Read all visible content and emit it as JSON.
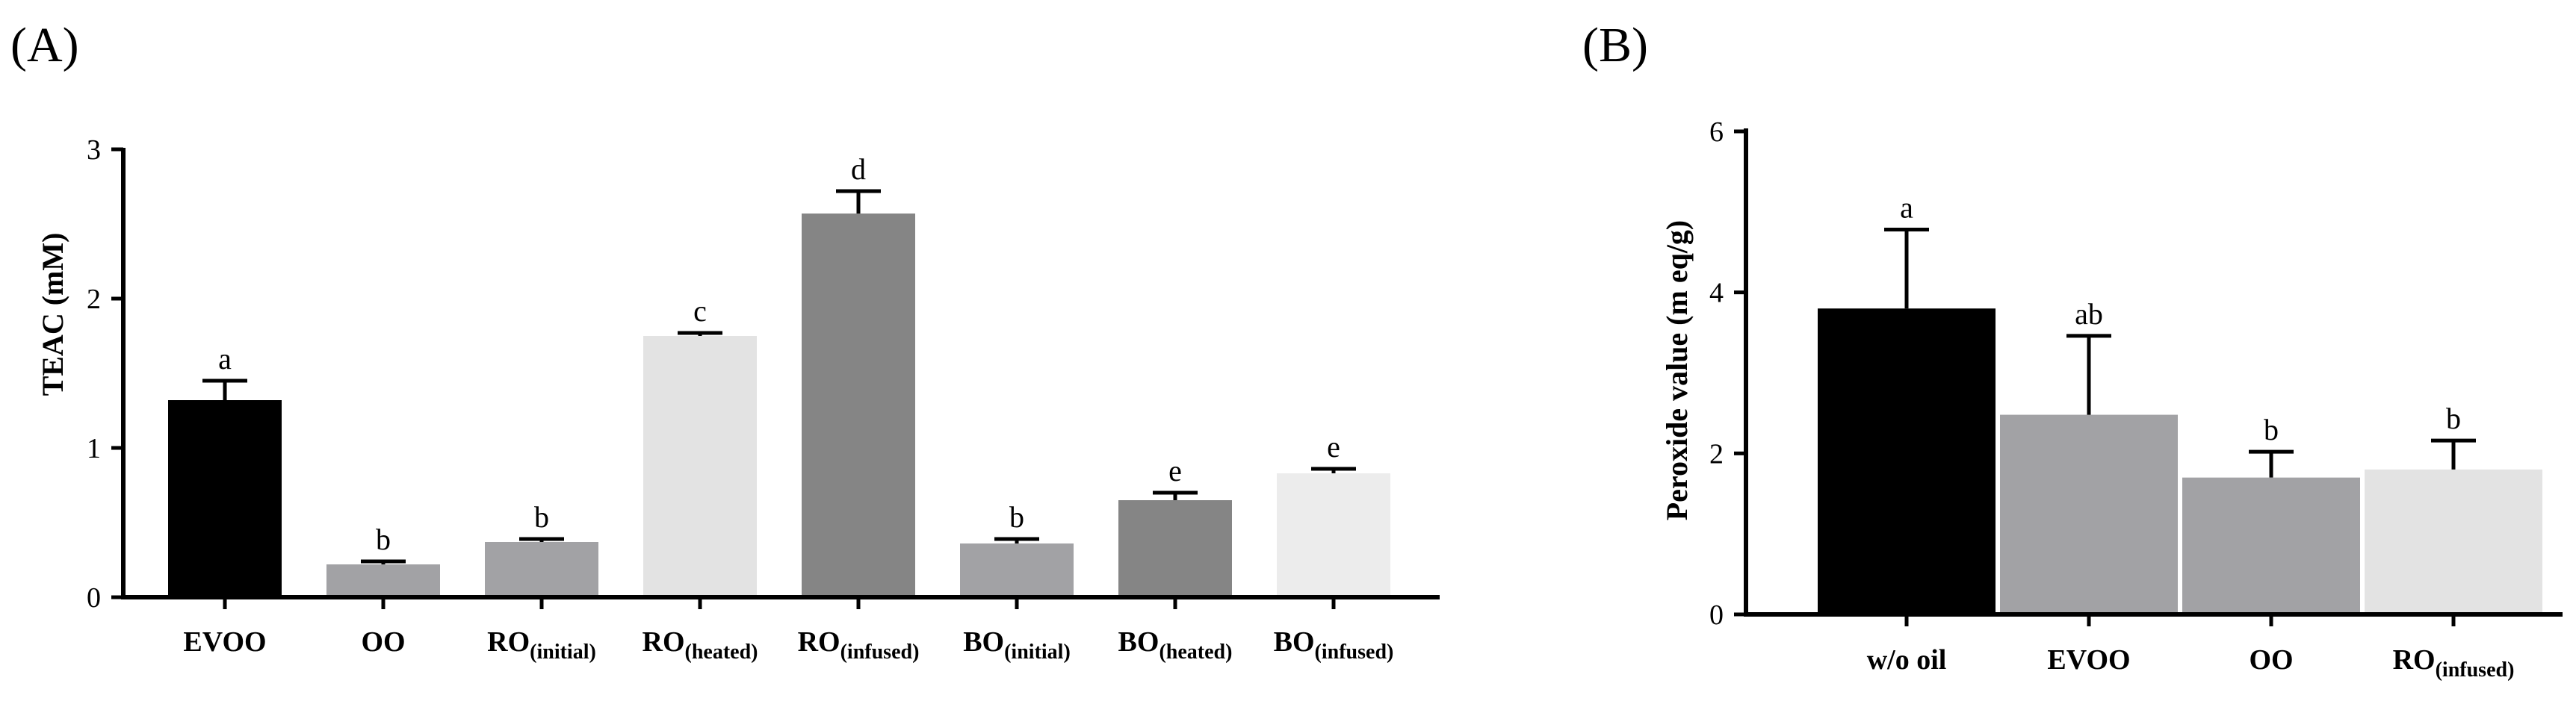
{
  "chart_data": [
    {
      "type": "bar",
      "panel": "(A)",
      "ylabel": "TEAC (mM)",
      "ylim": [
        0,
        3
      ],
      "yticks": [
        "0",
        "1",
        "2",
        "3"
      ],
      "categories": [
        {
          "main": "EVOO",
          "sub": ""
        },
        {
          "main": "OO",
          "sub": ""
        },
        {
          "main": "RO",
          "sub": "(initial)"
        },
        {
          "main": "RO",
          "sub": "(heated)"
        },
        {
          "main": "RO",
          "sub": "(infused)"
        },
        {
          "main": "BO",
          "sub": "(initial)"
        },
        {
          "main": "BO",
          "sub": "(heated)"
        },
        {
          "main": "BO",
          "sub": "(infused)"
        }
      ],
      "values": [
        1.32,
        0.22,
        0.37,
        1.75,
        2.57,
        0.36,
        0.65,
        0.83
      ],
      "errors": [
        0.13,
        0.02,
        0.02,
        0.02,
        0.15,
        0.03,
        0.05,
        0.03
      ],
      "significance": [
        "a",
        "b",
        "b",
        "c",
        "d",
        "b",
        "e",
        "e"
      ],
      "colors": [
        "#000000",
        "#a2a2a5",
        "#a2a2a5",
        "#e3e3e3",
        "#858585",
        "#a2a2a5",
        "#858585",
        "#ececec"
      ]
    },
    {
      "type": "bar",
      "panel": "(B)",
      "ylabel": "Peroxide value (m eq/g)",
      "ylim": [
        0,
        6
      ],
      "yticks": [
        "0",
        "2",
        "4",
        "6"
      ],
      "categories": [
        {
          "main": "w/o oil",
          "sub": ""
        },
        {
          "main": "EVOO",
          "sub": ""
        },
        {
          "main": "OO",
          "sub": ""
        },
        {
          "main": "RO",
          "sub": "(infused)"
        }
      ],
      "values": [
        3.8,
        2.48,
        1.7,
        1.8
      ],
      "errors": [
        0.98,
        0.98,
        0.32,
        0.36
      ],
      "significance": [
        "a",
        "ab",
        "b",
        "b"
      ],
      "colors": [
        "#000000",
        "#a2a2a5",
        "#a2a2a5",
        "#e3e3e3"
      ]
    }
  ]
}
